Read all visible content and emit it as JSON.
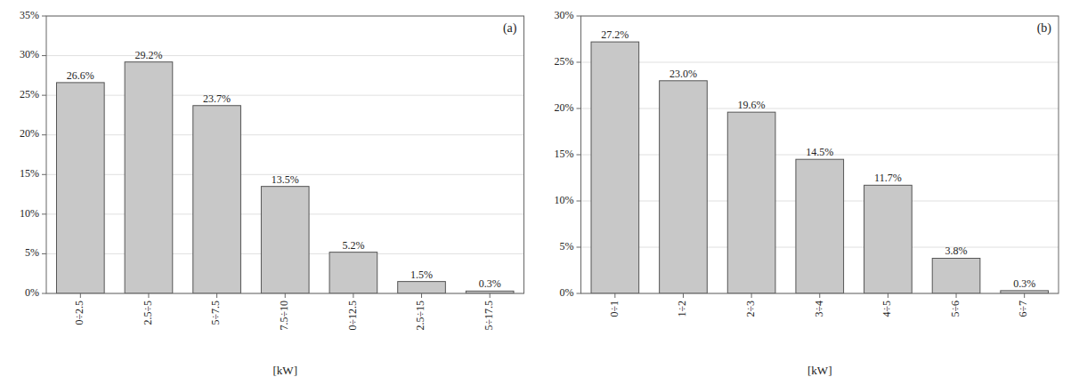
{
  "chart_data": [
    {
      "type": "bar",
      "title": "(a)",
      "xlabel": "[kW]",
      "categories": [
        "0÷2.5",
        "2.5÷5",
        "5÷7.5",
        "7.5÷10",
        "0÷12.5",
        "2.5÷15",
        "5÷17.5"
      ],
      "values": [
        26.6,
        29.2,
        23.7,
        13.5,
        5.2,
        1.5,
        0.3
      ],
      "value_labels": [
        "26.6%",
        "29.2%",
        "23.7%",
        "13.5%",
        "5.2%",
        "1.5%",
        "0.3%"
      ],
      "data_labels": true,
      "color": "#c8c8c8",
      "grid": true,
      "ylim": [
        0,
        35
      ],
      "yticks": [
        {
          "value": 0,
          "label": "0%"
        },
        {
          "value": 5,
          "label": "5%"
        },
        {
          "value": 10,
          "label": "10%"
        },
        {
          "value": 15,
          "label": "15%"
        },
        {
          "value": 20,
          "label": "20%"
        },
        {
          "value": 25,
          "label": "25%"
        },
        {
          "value": 30,
          "label": "30%"
        },
        {
          "value": 35,
          "label": "35%"
        }
      ]
    },
    {
      "type": "bar",
      "title": "(b)",
      "xlabel": "[kW]",
      "categories": [
        "0÷1",
        "1÷2",
        "2÷3",
        "3÷4",
        "4÷5",
        "5÷6",
        "6÷7"
      ],
      "values": [
        27.2,
        23.0,
        19.6,
        14.5,
        11.7,
        3.8,
        0.3
      ],
      "value_labels": [
        "27.2%",
        "23.0%",
        "19.6%",
        "14.5%",
        "11.7%",
        "3.8%",
        "0.3%"
      ],
      "data_labels": true,
      "color": "#c8c8c8",
      "grid": true,
      "ylim": [
        0,
        30
      ],
      "yticks": [
        {
          "value": 0,
          "label": "0%"
        },
        {
          "value": 5,
          "label": "5%"
        },
        {
          "value": 10,
          "label": "10%"
        },
        {
          "value": 15,
          "label": "15%"
        },
        {
          "value": 20,
          "label": "20%"
        },
        {
          "value": 25,
          "label": "25%"
        },
        {
          "value": 30,
          "label": "30%"
        }
      ]
    }
  ]
}
